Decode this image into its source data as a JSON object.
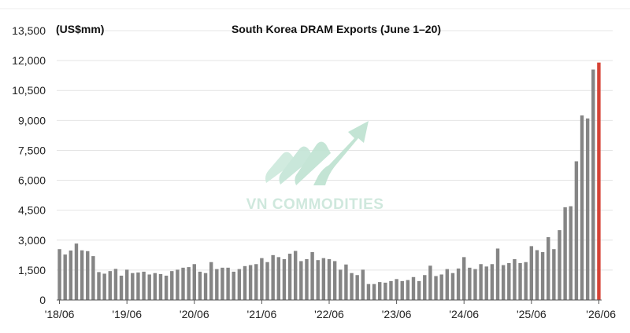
{
  "chart_data": {
    "type": "bar",
    "title": "South Korea DRAM Exports (June 1–20)",
    "unit_label": "(US$mm)",
    "ylim": [
      0,
      13500
    ],
    "yticks": [
      0,
      1500,
      3000,
      4500,
      6000,
      7500,
      9000,
      10500,
      12000,
      13500
    ],
    "ytick_labels": [
      "0",
      "1,500",
      "3,000",
      "4,500",
      "6,000",
      "7,500",
      "9,000",
      "10,500",
      "12,000",
      "13,500"
    ],
    "grid": true,
    "xtick_labels": [
      "'18/06",
      "'19/06",
      "'20/06",
      "'21/06",
      "'22/06",
      "'23/06",
      "'24/06",
      "'25/06",
      "'26/06"
    ],
    "xtick_indices": [
      0,
      12,
      24,
      36,
      48,
      60,
      72,
      84,
      96
    ],
    "colors": {
      "bar": "#858585",
      "highlight": "#d64336",
      "grid": "#e4e4e4",
      "axis": "#555555"
    },
    "highlight_index": 96,
    "values": [
      2550,
      2280,
      2480,
      2830,
      2490,
      2450,
      2200,
      1400,
      1320,
      1450,
      1560,
      1220,
      1520,
      1350,
      1380,
      1420,
      1280,
      1350,
      1300,
      1220,
      1450,
      1520,
      1620,
      1650,
      1800,
      1420,
      1350,
      1900,
      1550,
      1620,
      1620,
      1420,
      1550,
      1700,
      1750,
      1800,
      2100,
      1900,
      2250,
      2150,
      2050,
      2320,
      2460,
      1950,
      2050,
      2400,
      2000,
      2100,
      2050,
      1950,
      1520,
      1780,
      1350,
      1250,
      1520,
      800,
      800,
      900,
      870,
      950,
      1050,
      950,
      1000,
      1150,
      950,
      1250,
      1720,
      1200,
      1280,
      1550,
      1350,
      1580,
      2150,
      1620,
      1550,
      1800,
      1680,
      1800,
      2580,
      1750,
      1850,
      2050,
      1850,
      1900,
      2700,
      2500,
      2400,
      3150,
      2550,
      3500,
      4650,
      4700,
      6950,
      9250,
      9100,
      11550,
      11900
    ]
  },
  "watermark": {
    "brand": "VN COMMODITIES"
  }
}
